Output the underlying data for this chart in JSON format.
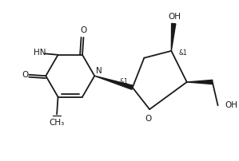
{
  "bg_color": "#ffffff",
  "line_color": "#1a1a1a",
  "line_width": 1.3,
  "figsize": [
    2.99,
    2.02
  ],
  "dpi": 100,
  "xlim": [
    0,
    10
  ],
  "ylim": [
    0,
    6.8
  ]
}
